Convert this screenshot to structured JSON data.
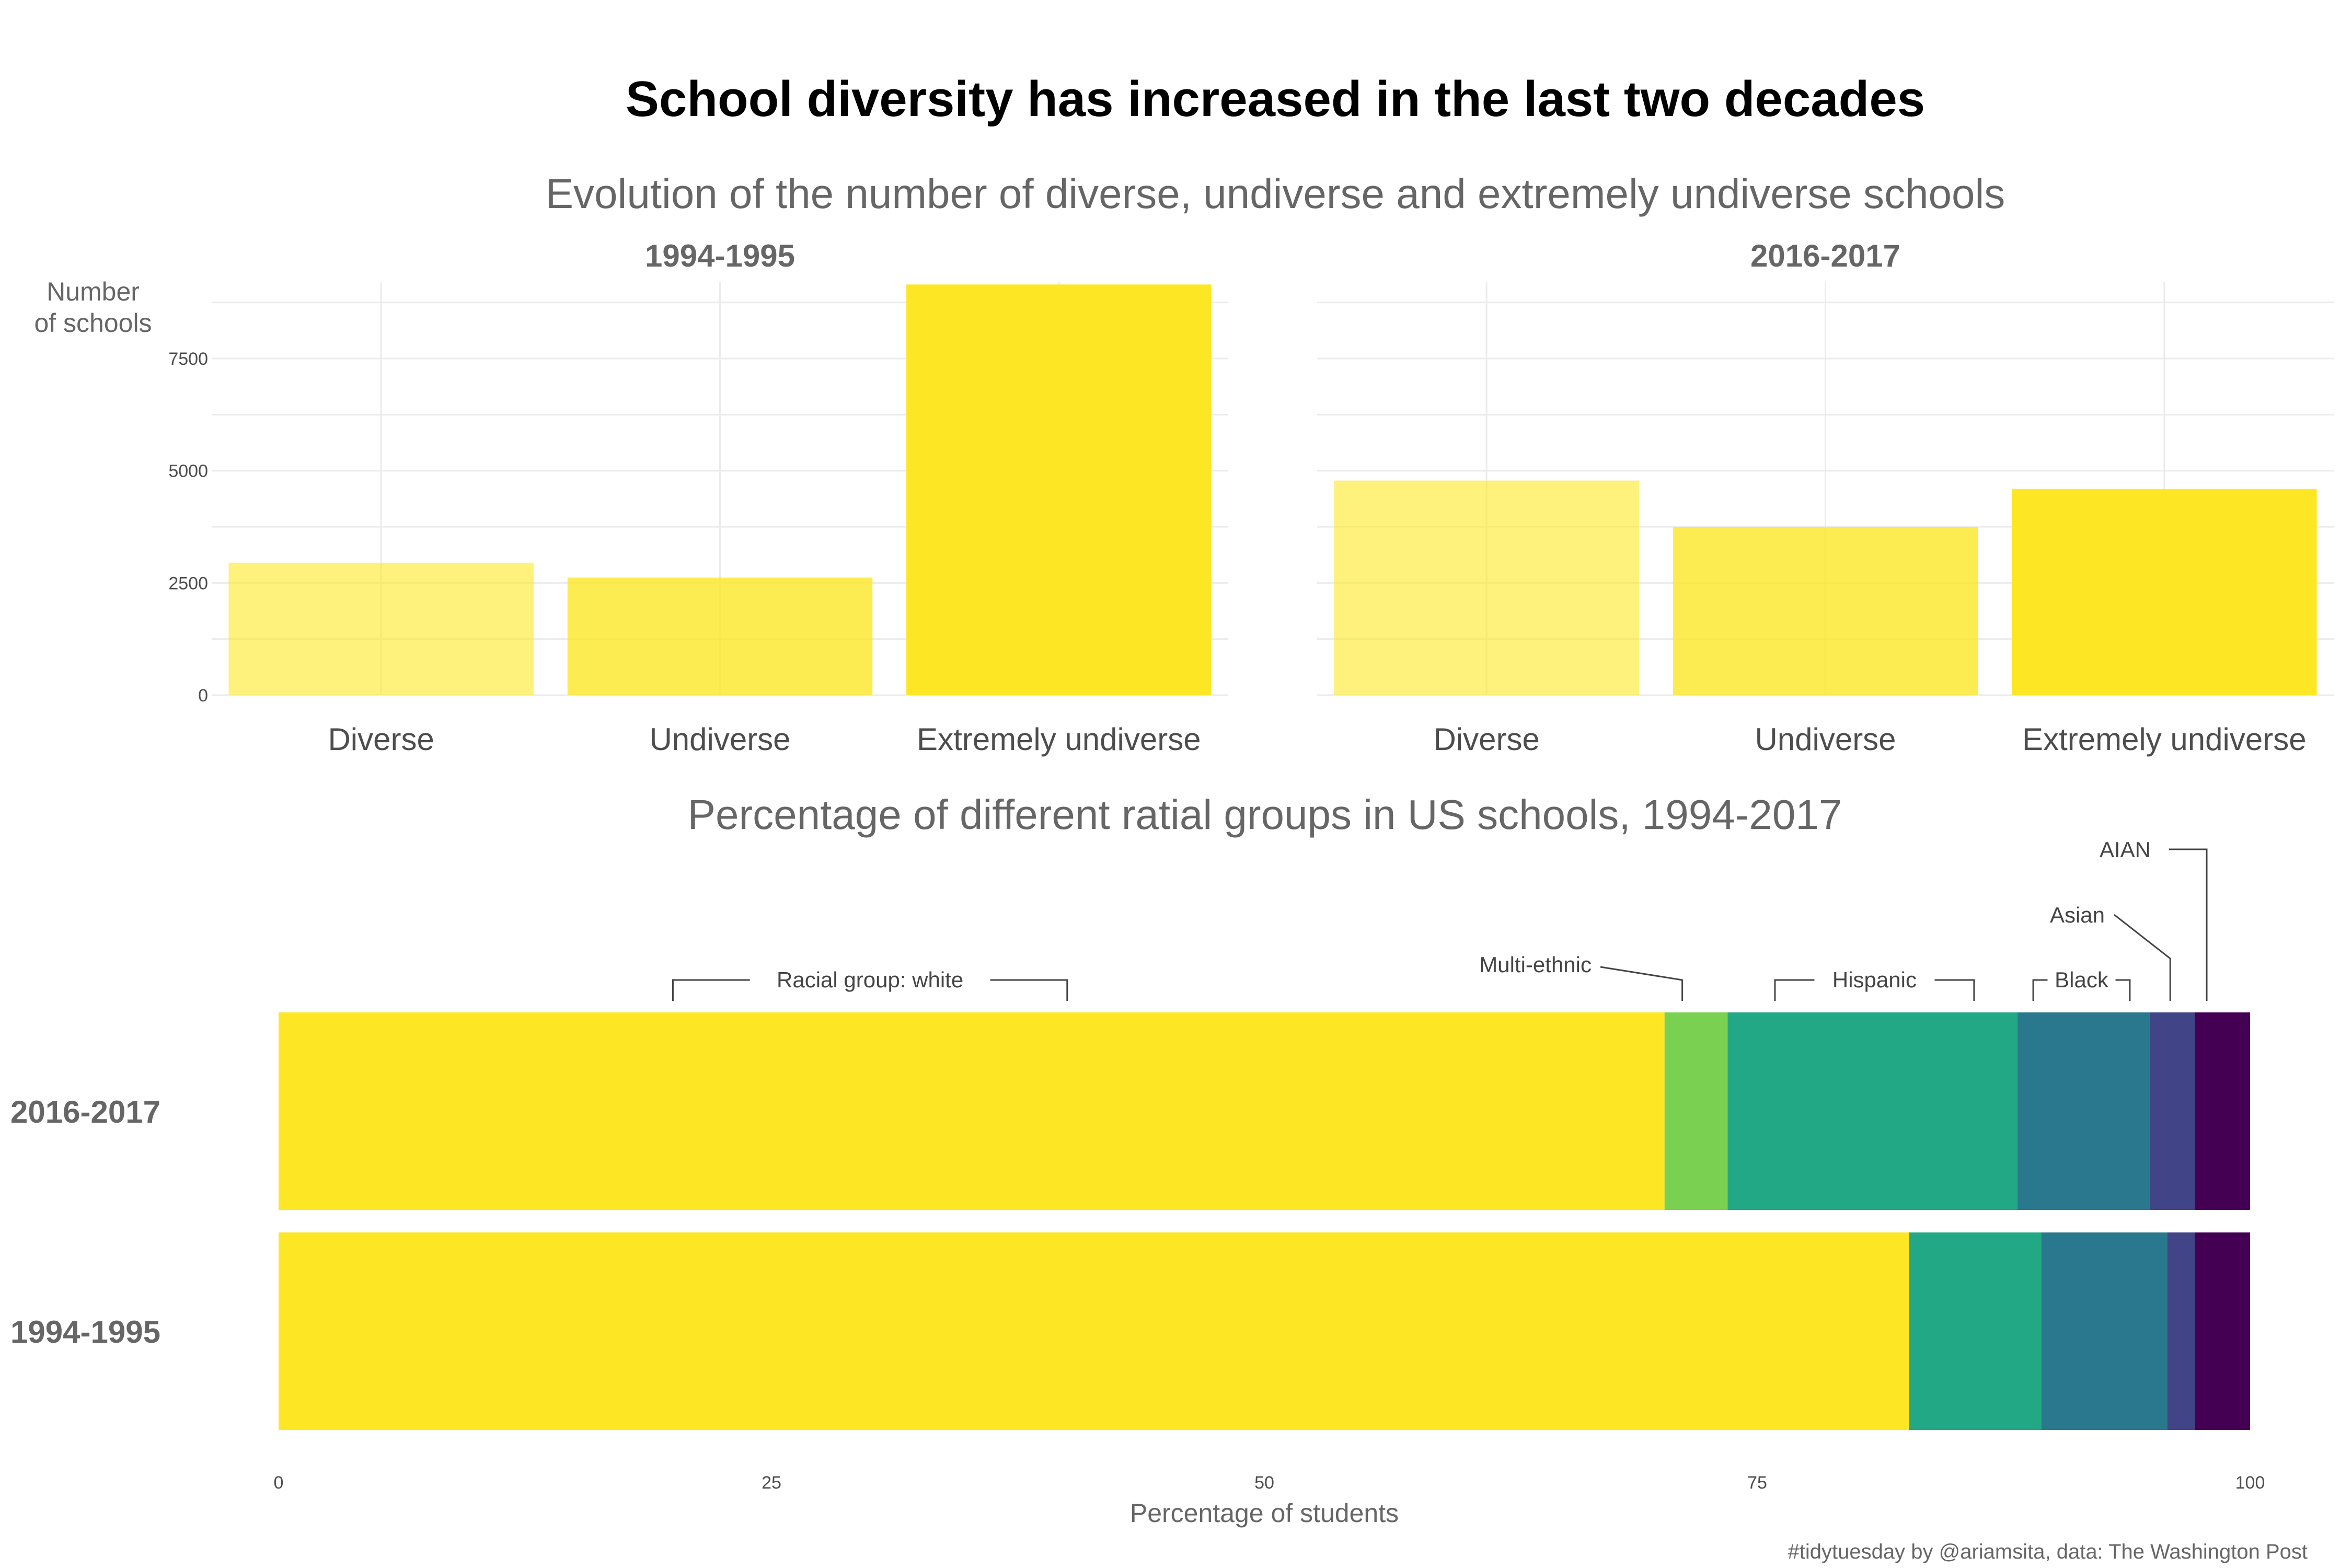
{
  "title": "School diversity has increased in the last two decades",
  "caption": "#tidytuesday by @ariamsita, data: The Washington Post",
  "colors": {
    "grid": "#ebebeb",
    "text_dark": "#000000",
    "text_grey": "#666666",
    "annotation": "#444444",
    "bar_yellow": "#FDE725"
  },
  "chart_data": [
    {
      "type": "bar",
      "subtitle": "Evolution of the number of diverse, undiverse and extremely undiverse schools",
      "ylabel": "Number\nof schools",
      "ylim": [
        0,
        9200
      ],
      "yticks": [
        0,
        2500,
        5000,
        7500
      ],
      "categories": [
        "Diverse",
        "Undiverse",
        "Extremely undiverse"
      ],
      "bar_opacity": [
        0.6,
        0.8,
        1.0
      ],
      "grid": true,
      "panels": [
        {
          "name": "1994-1995",
          "values": [
            2950,
            2620,
            9150
          ]
        },
        {
          "name": "2016-2017",
          "values": [
            4780,
            3750,
            4600
          ]
        }
      ]
    },
    {
      "type": "bar",
      "orientation": "horizontal-stacked",
      "title": "Percentage of different ratial groups in US schools, 1994-2017",
      "xlabel": "Percentage of students",
      "xlim": [
        0,
        100
      ],
      "xticks": [
        0,
        25,
        50,
        75,
        100
      ],
      "grid": false,
      "categories": [
        "2016-2017",
        "1994-1995"
      ],
      "series": [
        {
          "name": "Racial group: white",
          "color": "#FDE725",
          "values": [
            70.3,
            82.7
          ]
        },
        {
          "name": "Multi-ethnic",
          "color": "#7AD151",
          "values": [
            3.2,
            0.0
          ]
        },
        {
          "name": "Hispanic",
          "color": "#22A884",
          "values": [
            14.7,
            6.7
          ]
        },
        {
          "name": "Black",
          "color": "#2A788E",
          "values": [
            6.7,
            6.4
          ]
        },
        {
          "name": "Asian",
          "color": "#414487",
          "values": [
            2.3,
            1.4
          ]
        },
        {
          "name": "AIAN",
          "color": "#440154",
          "values": [
            2.8,
            2.8
          ]
        }
      ]
    }
  ]
}
